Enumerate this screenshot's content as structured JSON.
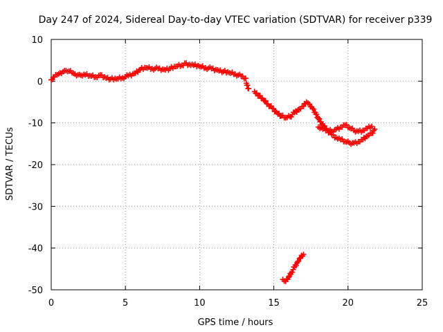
{
  "chart_data": {
    "type": "scatter",
    "title": "Day 247 of 2024, Sidereal Day-to-day VTEC variation (SDTVAR) for receiver p339",
    "xlabel": "GPS time / hours",
    "ylabel": "SDTVAR / TECUs",
    "xlim": [
      0,
      25
    ],
    "ylim": [
      -50,
      10
    ],
    "xticks": [
      0,
      5,
      10,
      15,
      20,
      25
    ],
    "yticks": [
      10,
      0,
      -10,
      -20,
      -30,
      -40,
      -50
    ],
    "grid": true,
    "marker": "plus",
    "marker_color": "#ff0000",
    "series": [
      {
        "name": "main trace",
        "x": [
          0.0,
          0.2,
          0.4,
          0.6,
          0.8,
          1.0,
          1.2,
          1.4,
          1.6,
          1.8,
          2.0,
          2.3,
          2.6,
          3.0,
          3.3,
          3.6,
          4.0,
          4.4,
          4.8,
          5.2,
          5.6,
          6.0,
          6.4,
          6.8,
          7.2,
          7.6,
          8.0,
          8.4,
          8.8,
          9.0,
          9.3,
          9.6,
          10.0,
          10.4,
          10.8,
          11.2,
          11.6,
          12.0,
          12.4,
          12.8,
          13.1
        ],
        "y": [
          0.3,
          1.0,
          1.5,
          2.0,
          2.3,
          2.5,
          2.4,
          2.0,
          1.7,
          1.5,
          1.4,
          1.5,
          1.3,
          1.0,
          1.5,
          1.0,
          0.5,
          0.5,
          0.8,
          1.3,
          1.9,
          2.8,
          3.2,
          3.0,
          3.0,
          2.8,
          3.0,
          3.5,
          3.8,
          4.3,
          4.0,
          3.8,
          3.5,
          3.2,
          3.0,
          2.7,
          2.3,
          2.0,
          1.7,
          1.2,
          0.7
        ]
      },
      {
        "name": "gap points",
        "x": [
          13.15,
          13.3
        ],
        "y": [
          -0.5,
          -1.8
        ]
      },
      {
        "name": "descending segment",
        "x": [
          13.7,
          14.0,
          14.3,
          14.6,
          14.9,
          15.2,
          15.5,
          15.8,
          16.1,
          16.4,
          16.7,
          17.0,
          17.2,
          17.4,
          17.6,
          17.8,
          18.0,
          18.3,
          18.6,
          18.9,
          19.2,
          19.5,
          19.8,
          20.1,
          20.4,
          20.7,
          21.0,
          21.3,
          21.6,
          21.8
        ],
        "y": [
          -2.5,
          -3.5,
          -4.5,
          -5.5,
          -6.5,
          -7.5,
          -8.3,
          -8.8,
          -8.5,
          -7.5,
          -6.7,
          -6.0,
          -5.0,
          -5.5,
          -6.5,
          -7.5,
          -9.0,
          -10.5,
          -11.8,
          -12.8,
          -13.5,
          -14.0,
          -14.5,
          -14.8,
          -14.8,
          -14.5,
          -14.0,
          -13.2,
          -12.5,
          -11.5
        ]
      },
      {
        "name": "parallel segment",
        "x": [
          18.0,
          18.3,
          18.6,
          18.9,
          19.2,
          19.5,
          19.8,
          20.1,
          20.4,
          20.7,
          21.0,
          21.3,
          21.6
        ],
        "y": [
          -11.0,
          -11.5,
          -11.8,
          -12.0,
          -11.5,
          -11.0,
          -10.5,
          -11.2,
          -11.8,
          -12.0,
          -11.8,
          -11.3,
          -10.8
        ]
      },
      {
        "name": "low segment",
        "x": [
          15.6,
          15.8,
          16.0,
          16.2,
          16.4,
          16.6,
          16.8,
          17.0
        ],
        "y": [
          -47.5,
          -48.0,
          -47.0,
          -45.8,
          -44.5,
          -43.3,
          -42.3,
          -41.5
        ]
      }
    ]
  }
}
